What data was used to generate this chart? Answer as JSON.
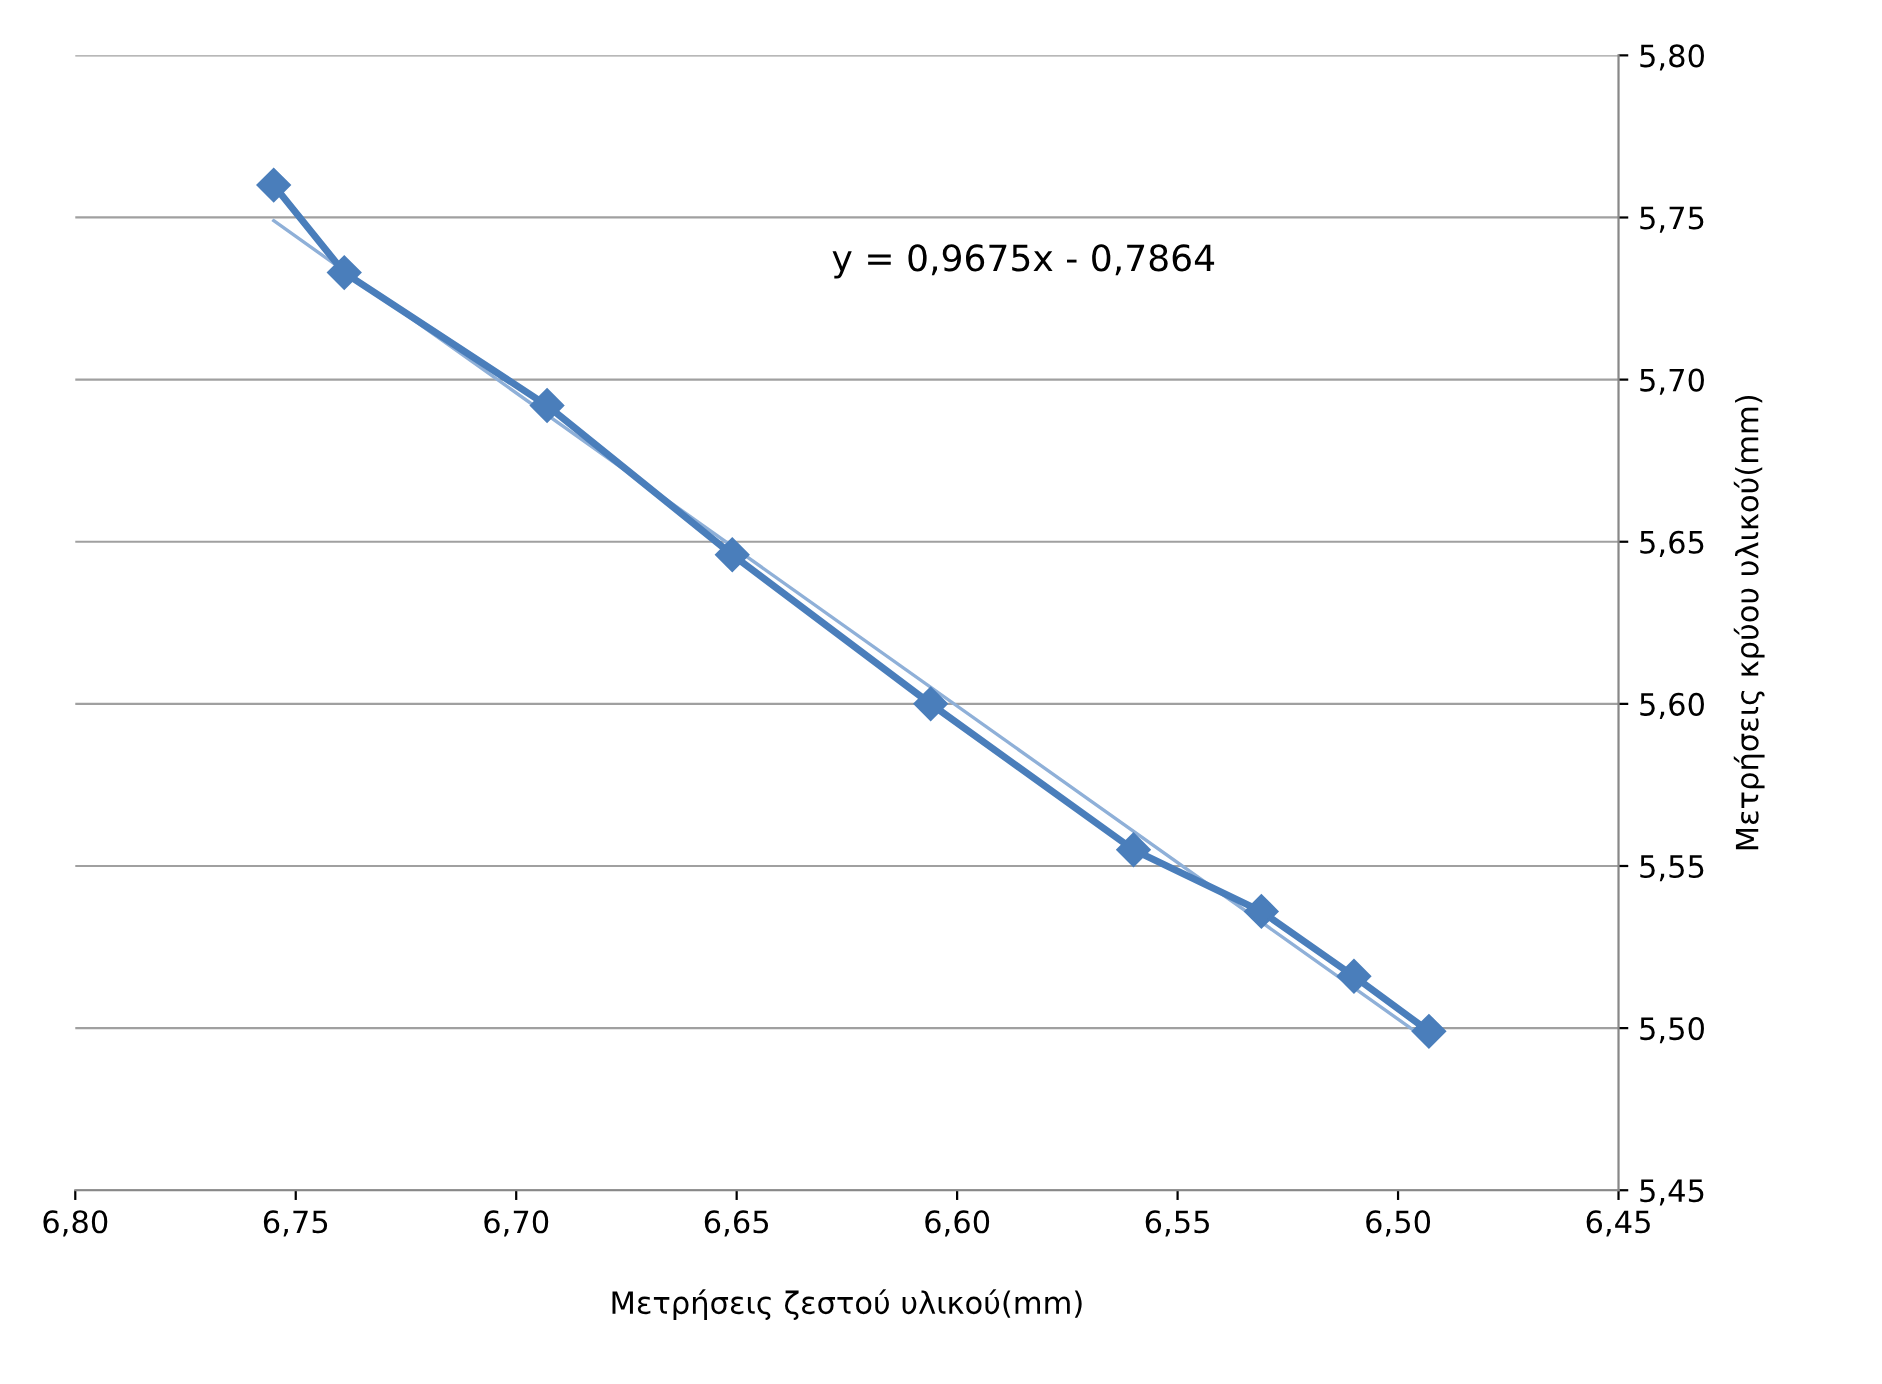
{
  "chart_data": {
    "type": "line",
    "xlabel": "Μετρήσεις ζεστού υλικού(mm)",
    "ylabel": "Μετρήσεις κρύου υλικού(mm)",
    "xlim": [
      6.8,
      6.45
    ],
    "ylim": [
      5.45,
      5.8
    ],
    "xticks": [
      {
        "value": 6.8,
        "label": "6,80"
      },
      {
        "value": 6.75,
        "label": "6,75"
      },
      {
        "value": 6.7,
        "label": "6,70"
      },
      {
        "value": 6.65,
        "label": "6,65"
      },
      {
        "value": 6.6,
        "label": "6,60"
      },
      {
        "value": 6.55,
        "label": "6,55"
      },
      {
        "value": 6.5,
        "label": "6,50"
      },
      {
        "value": 6.45,
        "label": "6,45"
      }
    ],
    "yticks": [
      {
        "value": 5.45,
        "label": "5,45"
      },
      {
        "value": 5.5,
        "label": "5,50"
      },
      {
        "value": 5.55,
        "label": "5,55"
      },
      {
        "value": 5.6,
        "label": "5,60"
      },
      {
        "value": 5.65,
        "label": "5,65"
      },
      {
        "value": 5.7,
        "label": "5,70"
      },
      {
        "value": 5.75,
        "label": "5,75"
      },
      {
        "value": 5.8,
        "label": "5,80"
      }
    ],
    "grid": "y",
    "marker": "diamond",
    "line_style": "solid",
    "series": [
      {
        "color": "#4a7ebb",
        "x": [
          6.755,
          6.739,
          6.693,
          6.651,
          6.606,
          6.56,
          6.531,
          6.51,
          6.493
        ],
        "values": [
          5.76,
          5.733,
          5.692,
          5.646,
          5.6,
          5.555,
          5.536,
          5.516,
          5.499
        ]
      },
      {
        "color": "#8fb0d8",
        "marker": "none",
        "x": [
          6.755,
          6.493
        ],
        "values": [
          5.749,
          5.496
        ]
      }
    ],
    "annotations": [
      "y = 0,9675x - 0,7864"
    ]
  }
}
